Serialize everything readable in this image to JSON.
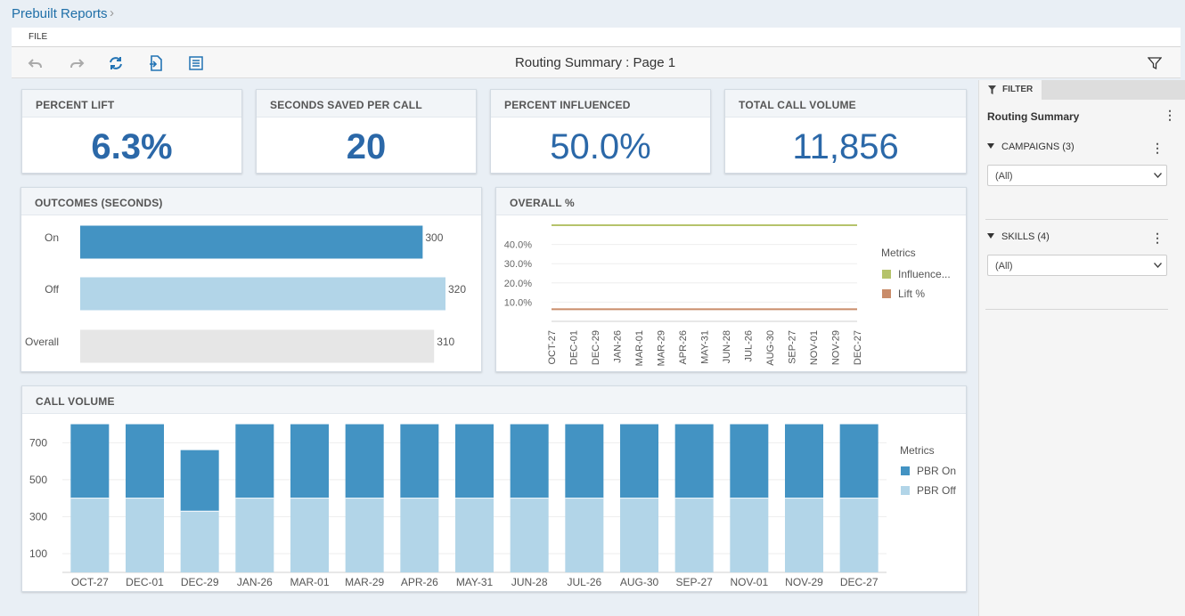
{
  "breadcrumb": {
    "label": "Prebuilt Reports"
  },
  "menu": {
    "file": "FILE"
  },
  "toolbar": {
    "title": "Routing Summary : Page 1"
  },
  "kpis": [
    {
      "label": "PERCENT LIFT",
      "value": "6.3%"
    },
    {
      "label": "SECONDS SAVED PER CALL",
      "value": "20"
    },
    {
      "label": "PERCENT INFLUENCED",
      "value": "50.0%"
    },
    {
      "label": "TOTAL CALL VOLUME",
      "value": "11,856"
    }
  ],
  "colors": {
    "accent": "#2b68a8",
    "pbr_on": "#4393c3",
    "pbr_off": "#b2d5e8",
    "overall": "#e6e6e6",
    "influenced": "#b5c36b",
    "lift": "#c98c6a"
  },
  "filter": {
    "tab": "FILTER",
    "title": "Routing Summary",
    "campaigns": {
      "label": "CAMPAIGNS (3)",
      "value": "(All)"
    },
    "skills": {
      "label": "SKILLS (4)",
      "value": "(All)"
    }
  },
  "chart_data": [
    {
      "type": "bar",
      "orientation": "horizontal",
      "title": "OUTCOMES (SECONDS)",
      "categories": [
        "On",
        "Off",
        "Overall"
      ],
      "values": [
        300,
        320,
        310
      ],
      "xlim": [
        0,
        320
      ]
    },
    {
      "type": "line",
      "title": "OVERALL %",
      "x": [
        "OCT-27",
        "DEC-01",
        "DEC-29",
        "JAN-26",
        "MAR-01",
        "MAR-29",
        "APR-26",
        "MAY-31",
        "JUN-28",
        "JUL-26",
        "AUG-30",
        "SEP-27",
        "NOV-01",
        "NOV-29",
        "DEC-27"
      ],
      "series": [
        {
          "name": "Influence...",
          "values": [
            50,
            50,
            50,
            50,
            50,
            50,
            50,
            50,
            50,
            50,
            50,
            50,
            50,
            50,
            50
          ]
        },
        {
          "name": "Lift %",
          "values": [
            6.3,
            6.3,
            6.3,
            6.3,
            6.3,
            6.3,
            6.3,
            6.3,
            6.3,
            6.3,
            6.3,
            6.3,
            6.3,
            6.3,
            6.3
          ]
        }
      ],
      "yticks": [
        "10.0%",
        "20.0%",
        "30.0%",
        "40.0%"
      ],
      "ytick_values": [
        10,
        20,
        30,
        40
      ],
      "ylim": [
        0,
        50
      ],
      "legend_title": "Metrics",
      "legend": "right"
    },
    {
      "type": "bar",
      "stacked": true,
      "title": "CALL VOLUME",
      "categories": [
        "OCT-27",
        "DEC-01",
        "DEC-29",
        "JAN-26",
        "MAR-01",
        "MAR-29",
        "APR-26",
        "MAY-31",
        "JUN-28",
        "JUL-26",
        "AUG-30",
        "SEP-27",
        "NOV-01",
        "NOV-29",
        "DEC-27"
      ],
      "series": [
        {
          "name": "PBR Off",
          "values": [
            400,
            400,
            330,
            400,
            400,
            400,
            400,
            400,
            400,
            400,
            400,
            400,
            400,
            400,
            400
          ]
        },
        {
          "name": "PBR On",
          "values": [
            400,
            400,
            330,
            400,
            400,
            400,
            400,
            400,
            400,
            400,
            400,
            400,
            400,
            400,
            400
          ]
        }
      ],
      "legend_order": [
        "PBR On",
        "PBR Off"
      ],
      "yticks": [
        "100",
        "300",
        "500",
        "700"
      ],
      "ytick_values": [
        100,
        300,
        500,
        700
      ],
      "ylim": [
        0,
        800
      ],
      "legend_title": "Metrics",
      "legend": "right"
    }
  ]
}
